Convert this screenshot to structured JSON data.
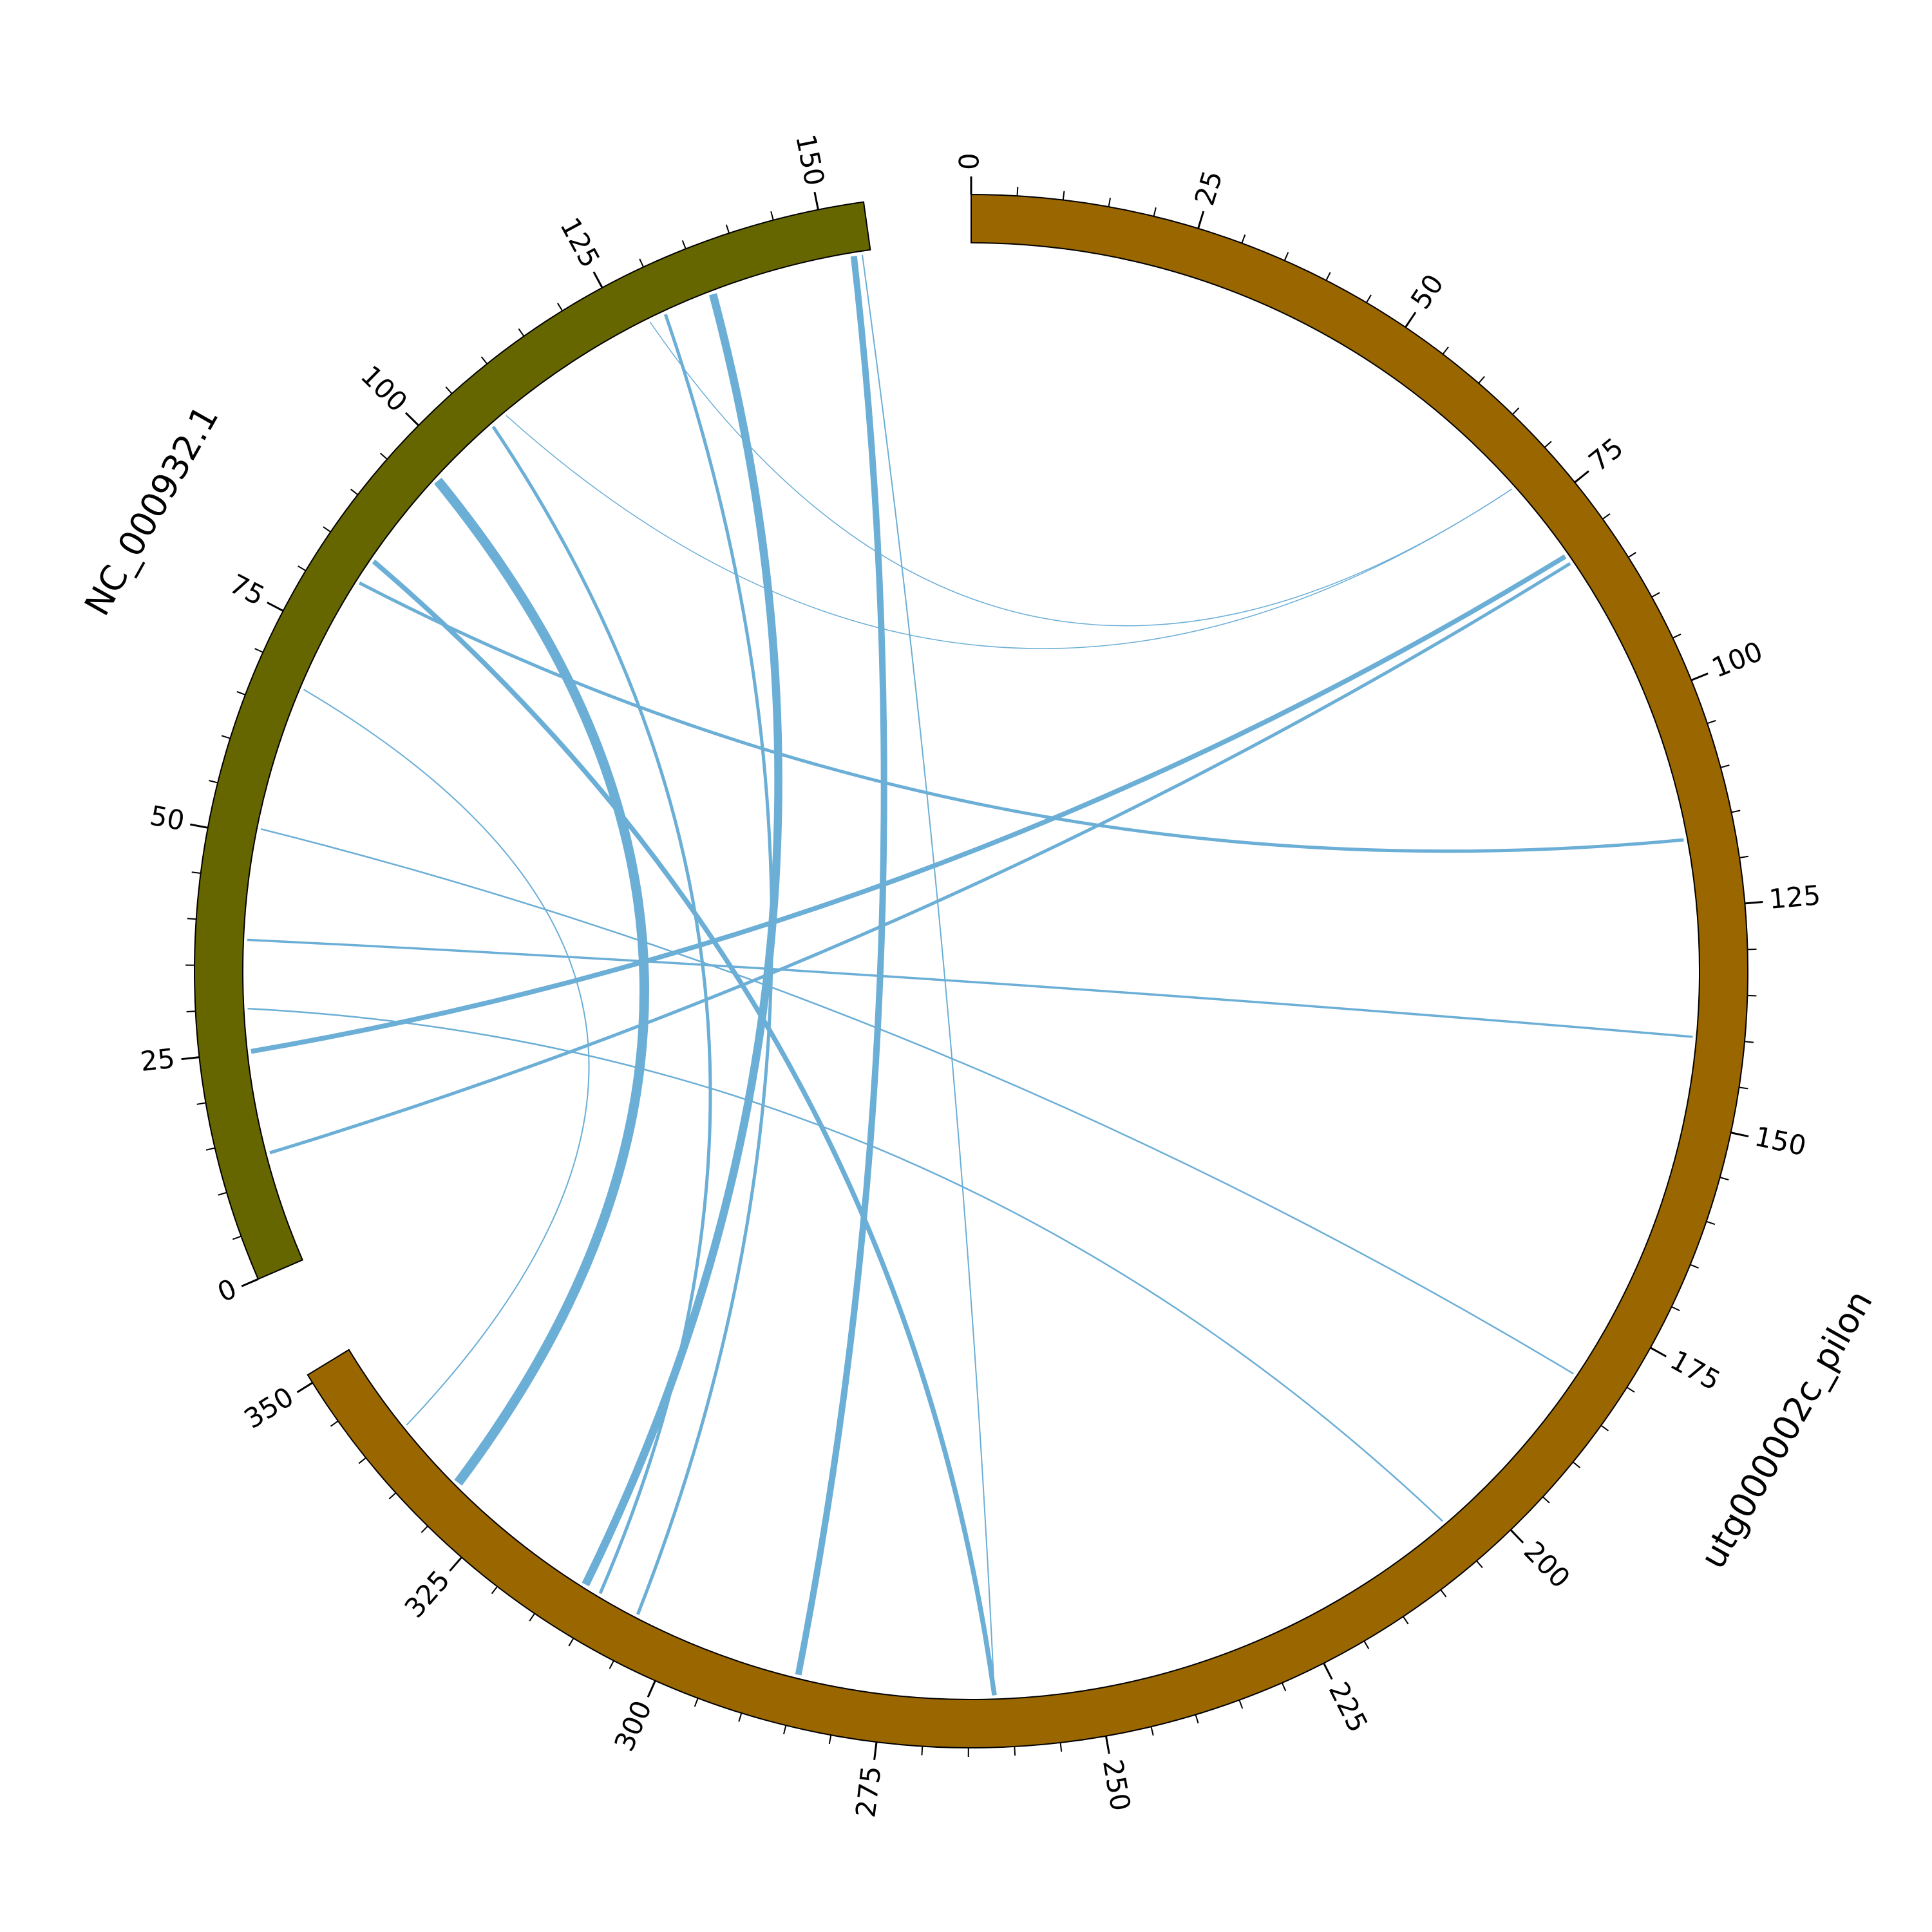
{
  "chart_data": {
    "type": "chord",
    "link_color": "#6baed6",
    "segments": [
      {
        "name": "utg000002c_pilon",
        "length": 351,
        "color": "#996600",
        "ticks": [
          0,
          25,
          50,
          75,
          100,
          125,
          150,
          175,
          200,
          225,
          250,
          275,
          300,
          325,
          350
        ],
        "minor_ticks": [
          5,
          10,
          15,
          20,
          30,
          35,
          40,
          45,
          55,
          60,
          65,
          70,
          80,
          85,
          90,
          95,
          105,
          110,
          115,
          120,
          130,
          135,
          140,
          145,
          155,
          160,
          165,
          170,
          180,
          185,
          190,
          195,
          205,
          210,
          215,
          220,
          230,
          235,
          240,
          245,
          255,
          260,
          265,
          270,
          280,
          285,
          290,
          295,
          305,
          310,
          315,
          320,
          330,
          335,
          340,
          345
        ]
      },
      {
        "name": "NC_000932.1",
        "length": 155,
        "color": "#666600",
        "ticks": [
          0,
          25,
          50,
          75,
          100,
          125,
          150
        ],
        "minor_ticks": [
          5,
          10,
          15,
          20,
          30,
          35,
          40,
          45,
          55,
          60,
          65,
          70,
          80,
          85,
          90,
          95,
          105,
          110,
          115,
          120,
          130,
          135,
          140,
          145
        ]
      }
    ],
    "links": [
      {
        "from": [
          1,
          97
        ],
        "to": [
          0,
          331
        ],
        "width": 3
      },
      {
        "from": [
          1,
          85
        ],
        "to": [
          0,
          262
        ],
        "width": 1.5
      },
      {
        "from": [
          1,
          82
        ],
        "to": [
          0,
          117
        ],
        "width": 1
      },
      {
        "from": [
          1,
          68
        ],
        "to": [
          0,
          340
        ],
        "width": 0.4
      },
      {
        "from": [
          1,
          51
        ],
        "to": [
          0,
          182
        ],
        "width": 0.5
      },
      {
        "from": [
          1,
          38
        ],
        "to": [
          0,
          140
        ],
        "width": 0.7
      },
      {
        "from": [
          1,
          30
        ],
        "to": [
          0,
          205
        ],
        "width": 0.5
      },
      {
        "from": [
          1,
          25
        ],
        "to": [
          0,
          81
        ],
        "width": 1.5
      },
      {
        "from": [
          1,
          13
        ],
        "to": [
          0,
          82
        ],
        "width": 1
      },
      {
        "from": [
          1,
          106
        ],
        "to": [
          0,
          310
        ],
        "width": 1
      },
      {
        "from": [
          1,
          108
        ],
        "to": [
          0,
          71
        ],
        "width": 0.3
      },
      {
        "from": [
          1,
          128
        ],
        "to": [
          0,
          71
        ],
        "width": 0.3
      },
      {
        "from": [
          1,
          136
        ],
        "to": [
          0,
          312
        ],
        "width": 2.5
      },
      {
        "from": [
          1,
          130
        ],
        "to": [
          0,
          305
        ],
        "width": 1
      },
      {
        "from": [
          1,
          153
        ],
        "to": [
          0,
          285
        ],
        "width": 2
      },
      {
        "from": [
          1,
          154
        ],
        "to": [
          0,
          262
        ],
        "width": 0.4
      }
    ]
  }
}
